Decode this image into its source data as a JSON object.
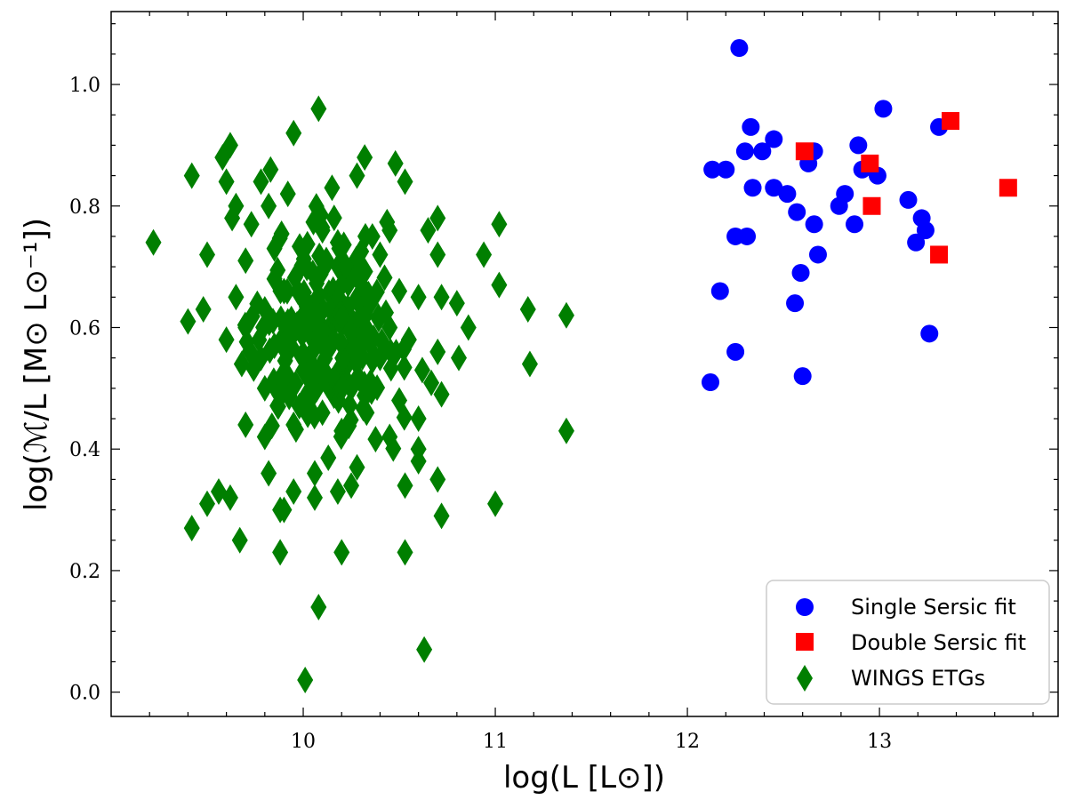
{
  "chart_data": {
    "type": "scatter",
    "title": "",
    "xlabel": "log(L [L⊙])",
    "ylabel": "log(ℳ/L [M⊙ L⊙⁻¹])",
    "xlim": [
      9.0,
      13.93
    ],
    "ylim": [
      -0.04,
      1.12
    ],
    "xticks": [
      10,
      11,
      12,
      13
    ],
    "yticks": [
      0.0,
      0.2,
      0.4,
      0.6,
      0.8,
      1.0
    ],
    "xtick_labels": [
      "10",
      "11",
      "12",
      "13"
    ],
    "ytick_labels": [
      "0.0",
      "0.2",
      "0.4",
      "0.6",
      "0.8",
      "1.0"
    ],
    "legend_position": "lower-right",
    "series": [
      {
        "name": "Single Sersic fit",
        "marker": "circle",
        "color": "#0000ff",
        "points": [
          [
            12.27,
            1.06
          ],
          [
            13.02,
            0.96
          ],
          [
            12.33,
            0.93
          ],
          [
            13.31,
            0.93
          ],
          [
            12.45,
            0.91
          ],
          [
            12.89,
            0.9
          ],
          [
            12.3,
            0.89
          ],
          [
            12.39,
            0.89
          ],
          [
            12.66,
            0.89
          ],
          [
            12.63,
            0.87
          ],
          [
            12.13,
            0.86
          ],
          [
            12.2,
            0.86
          ],
          [
            12.91,
            0.86
          ],
          [
            12.99,
            0.85
          ],
          [
            12.34,
            0.83
          ],
          [
            12.45,
            0.83
          ],
          [
            12.52,
            0.82
          ],
          [
            12.82,
            0.82
          ],
          [
            13.15,
            0.81
          ],
          [
            12.79,
            0.8
          ],
          [
            12.57,
            0.79
          ],
          [
            13.22,
            0.78
          ],
          [
            12.66,
            0.77
          ],
          [
            12.87,
            0.77
          ],
          [
            13.24,
            0.76
          ],
          [
            12.25,
            0.75
          ],
          [
            12.31,
            0.75
          ],
          [
            13.19,
            0.74
          ],
          [
            12.68,
            0.72
          ],
          [
            12.59,
            0.69
          ],
          [
            12.17,
            0.66
          ],
          [
            12.56,
            0.64
          ],
          [
            13.26,
            0.59
          ],
          [
            12.25,
            0.56
          ],
          [
            12.6,
            0.52
          ],
          [
            12.12,
            0.51
          ]
        ]
      },
      {
        "name": "Double Sersic fit",
        "marker": "square",
        "color": "#ff0000",
        "points": [
          [
            13.37,
            0.94
          ],
          [
            12.61,
            0.89
          ],
          [
            12.95,
            0.87
          ],
          [
            13.67,
            0.83
          ],
          [
            12.96,
            0.8
          ],
          [
            13.31,
            0.72
          ]
        ]
      },
      {
        "name": "WINGS ETGs",
        "marker": "diamond",
        "color": "#007f00",
        "count": 330,
        "x_range": [
          9.2,
          11.4
        ],
        "y_range": [
          0.01,
          0.96
        ],
        "points": [
          [
            10.08,
            0.96
          ],
          [
            9.95,
            0.92
          ],
          [
            9.62,
            0.9
          ],
          [
            9.58,
            0.88
          ],
          [
            10.32,
            0.88
          ],
          [
            9.42,
            0.85
          ],
          [
            9.83,
            0.86
          ],
          [
            10.48,
            0.87
          ],
          [
            9.6,
            0.84
          ],
          [
            10.53,
            0.84
          ],
          [
            9.78,
            0.84
          ],
          [
            9.92,
            0.82
          ],
          [
            10.15,
            0.83
          ],
          [
            10.28,
            0.85
          ],
          [
            9.65,
            0.8
          ],
          [
            9.82,
            0.8
          ],
          [
            9.73,
            0.77
          ],
          [
            10.1,
            0.76
          ],
          [
            10.65,
            0.76
          ],
          [
            11.02,
            0.77
          ],
          [
            9.63,
            0.78
          ],
          [
            10.45,
            0.76
          ],
          [
            10.7,
            0.78
          ],
          [
            9.85,
            0.73
          ],
          [
            10.18,
            0.74
          ],
          [
            10.36,
            0.75
          ],
          [
            10.7,
            0.72
          ],
          [
            9.22,
            0.74
          ],
          [
            9.5,
            0.72
          ],
          [
            9.7,
            0.71
          ],
          [
            10.05,
            0.69
          ],
          [
            10.3,
            0.7
          ],
          [
            10.94,
            0.72
          ],
          [
            10.4,
            0.72
          ],
          [
            9.85,
            0.68
          ],
          [
            10.5,
            0.66
          ],
          [
            11.02,
            0.67
          ],
          [
            9.65,
            0.65
          ],
          [
            9.9,
            0.66
          ],
          [
            10.2,
            0.67
          ],
          [
            10.6,
            0.65
          ],
          [
            10.8,
            0.64
          ],
          [
            11.17,
            0.63
          ],
          [
            11.37,
            0.62
          ],
          [
            9.48,
            0.63
          ],
          [
            9.8,
            0.63
          ],
          [
            10.0,
            0.62
          ],
          [
            10.35,
            0.64
          ],
          [
            10.72,
            0.65
          ],
          [
            9.4,
            0.61
          ],
          [
            9.7,
            0.6
          ],
          [
            9.92,
            0.61
          ],
          [
            10.1,
            0.6
          ],
          [
            10.45,
            0.6
          ],
          [
            10.86,
            0.6
          ],
          [
            9.6,
            0.58
          ],
          [
            9.85,
            0.57
          ],
          [
            10.05,
            0.58
          ],
          [
            10.25,
            0.57
          ],
          [
            10.55,
            0.58
          ],
          [
            10.7,
            0.56
          ],
          [
            9.78,
            0.55
          ],
          [
            10.0,
            0.55
          ],
          [
            10.2,
            0.53
          ],
          [
            10.4,
            0.55
          ],
          [
            10.81,
            0.55
          ],
          [
            9.68,
            0.54
          ],
          [
            9.92,
            0.52
          ],
          [
            10.12,
            0.51
          ],
          [
            10.35,
            0.51
          ],
          [
            10.62,
            0.53
          ],
          [
            11.18,
            0.54
          ],
          [
            9.8,
            0.5
          ],
          [
            10.02,
            0.49
          ],
          [
            10.25,
            0.5
          ],
          [
            10.5,
            0.48
          ],
          [
            10.72,
            0.49
          ],
          [
            9.87,
            0.47
          ],
          [
            10.1,
            0.46
          ],
          [
            10.33,
            0.46
          ],
          [
            10.6,
            0.45
          ],
          [
            9.7,
            0.44
          ],
          [
            9.95,
            0.44
          ],
          [
            10.2,
            0.43
          ],
          [
            10.45,
            0.42
          ],
          [
            11.37,
            0.43
          ],
          [
            9.8,
            0.42
          ],
          [
            10.6,
            0.4
          ],
          [
            10.6,
            0.38
          ],
          [
            10.06,
            0.36
          ],
          [
            9.82,
            0.36
          ],
          [
            10.28,
            0.37
          ],
          [
            10.53,
            0.34
          ],
          [
            10.7,
            0.35
          ],
          [
            9.56,
            0.33
          ],
          [
            9.62,
            0.32
          ],
          [
            9.95,
            0.33
          ],
          [
            10.06,
            0.32
          ],
          [
            10.18,
            0.33
          ],
          [
            10.25,
            0.34
          ],
          [
            9.5,
            0.31
          ],
          [
            9.9,
            0.3
          ],
          [
            11.0,
            0.31
          ],
          [
            9.42,
            0.27
          ],
          [
            9.67,
            0.25
          ],
          [
            9.88,
            0.3
          ],
          [
            10.72,
            0.29
          ],
          [
            9.88,
            0.23
          ],
          [
            10.2,
            0.23
          ],
          [
            10.53,
            0.23
          ],
          [
            10.08,
            0.14
          ],
          [
            10.63,
            0.07
          ],
          [
            10.01,
            0.02
          ]
        ]
      }
    ]
  },
  "legend": {
    "items": [
      {
        "label": "Single Sersic fit",
        "marker": "circle",
        "color": "#0000ff"
      },
      {
        "label": "Double Sersic fit",
        "marker": "square",
        "color": "#ff0000"
      },
      {
        "label": "WINGS ETGs",
        "marker": "diamond",
        "color": "#007f00"
      }
    ]
  }
}
